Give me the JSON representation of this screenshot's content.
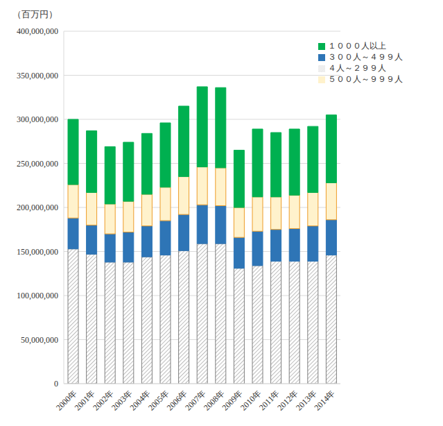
{
  "chart_data": {
    "type": "bar",
    "stacked": true,
    "y_label": "（百万円）",
    "categories": [
      "2000年",
      "2001年",
      "2002年",
      "2003年",
      "2004年",
      "2005年",
      "2006年",
      "2007年",
      "2008年",
      "2009年",
      "2010年",
      "2011年",
      "2012年",
      "2013年",
      "2014年"
    ],
    "series": [
      {
        "name": "４人～２９９人",
        "color": "#a6a6a6",
        "values": [
          153000000,
          147000000,
          138000000,
          138000000,
          144000000,
          146000000,
          151000000,
          159000000,
          159000000,
          131000000,
          134000000,
          139000000,
          139000000,
          139000000,
          146000000
        ]
      },
      {
        "name": "３００人～４９９人",
        "color": "#2e75b6",
        "values": [
          35000000,
          33000000,
          32000000,
          34000000,
          35000000,
          39000000,
          41000000,
          44000000,
          43000000,
          35000000,
          39000000,
          36000000,
          37000000,
          40000000,
          40000000
        ]
      },
      {
        "name": "５００人～９９９人",
        "color": "#fff2cc",
        "values": [
          38000000,
          37000000,
          34000000,
          35000000,
          36000000,
          38000000,
          43000000,
          43000000,
          43000000,
          34000000,
          39000000,
          37000000,
          38000000,
          38000000,
          42000000
        ]
      },
      {
        "name": "１０００人以上",
        "color": "#00b050",
        "values": [
          74000000,
          70000000,
          65000000,
          67000000,
          69000000,
          73000000,
          80000000,
          91000000,
          91000000,
          65000000,
          77000000,
          73000000,
          75000000,
          75000000,
          77000000
        ]
      }
    ],
    "ylim": [
      0,
      400000000
    ],
    "yticks": [
      0,
      {
        "value": 50000000,
        "label": "50,000,000"
      },
      {
        "value": 100000000,
        "label": "100,000,000"
      },
      {
        "value": 150000000,
        "label": "150,000,000"
      },
      {
        "value": 200000000,
        "label": "200,000,000"
      },
      {
        "value": 250000000,
        "label": "250,000,000"
      },
      {
        "value": 300000000,
        "label": "300,000,000"
      },
      {
        "value": 350000000,
        "label": "350,000,000"
      },
      {
        "value": 400000000,
        "label": "400,000,000"
      }
    ],
    "grid": true,
    "legend": "top-right"
  }
}
